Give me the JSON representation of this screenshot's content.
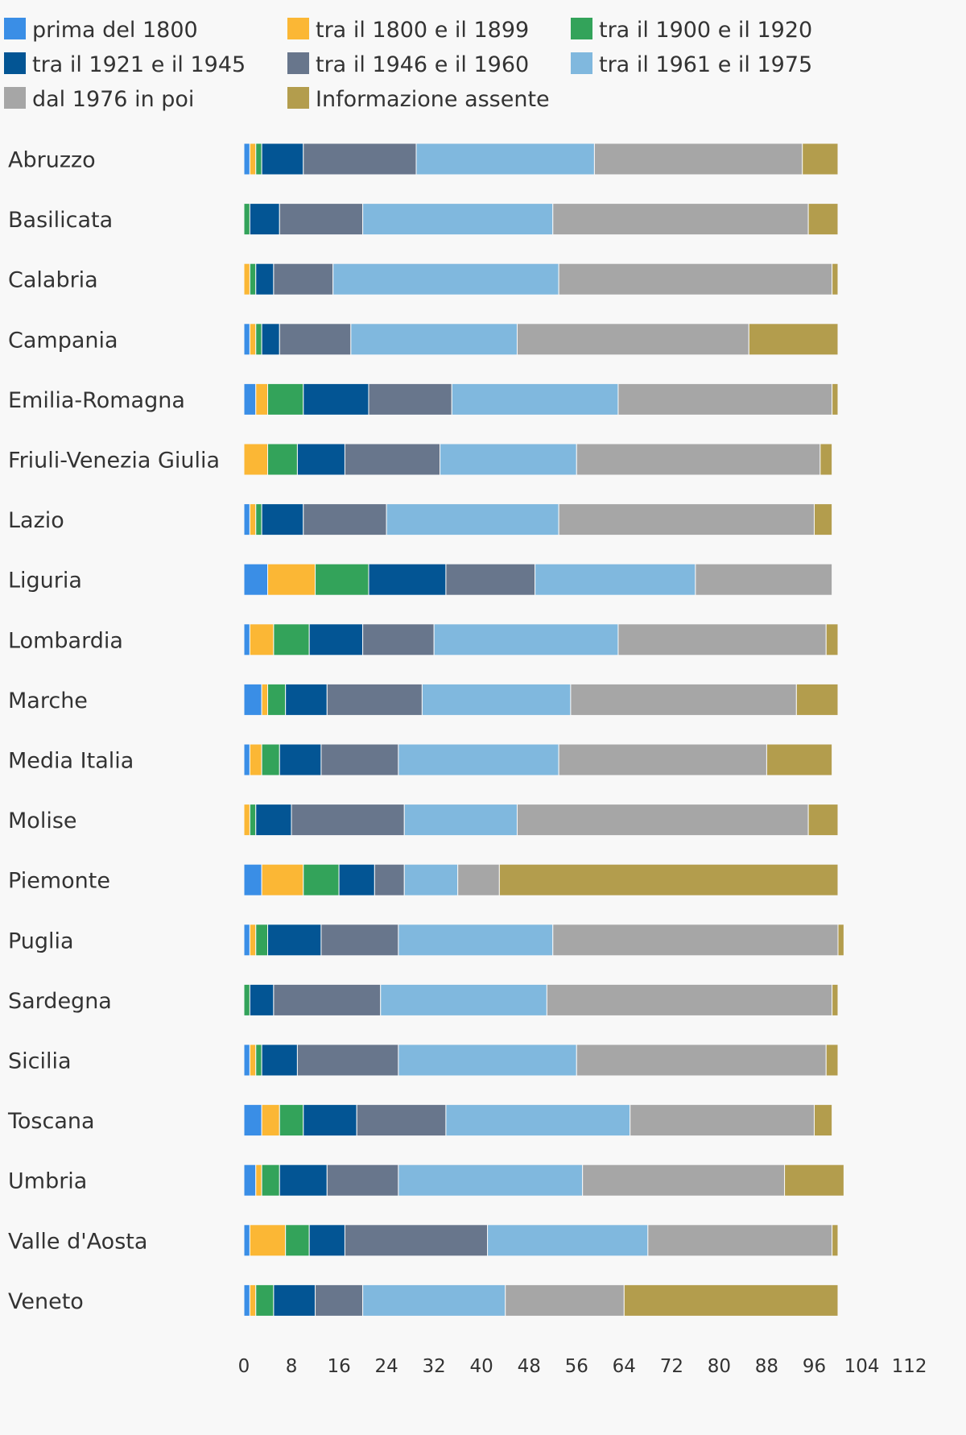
{
  "chart_data": {
    "type": "bar",
    "orientation": "horizontal",
    "stacked": true,
    "legend_position": "top",
    "grid": false,
    "xlim": [
      0,
      112
    ],
    "xticks": [
      0,
      8,
      16,
      24,
      32,
      40,
      48,
      56,
      64,
      72,
      80,
      88,
      96,
      104,
      112
    ],
    "categories": [
      "Abruzzo",
      "Basilicata",
      "Calabria",
      "Campania",
      "Emilia-Romagna",
      "Friuli-Venezia Giulia",
      "Lazio",
      "Liguria",
      "Lombardia",
      "Marche",
      "Media Italia",
      "Molise",
      "Piemonte",
      "Puglia",
      "Sardegna",
      "Sicilia",
      "Toscana",
      "Umbria",
      "Valle d'Aosta",
      "Veneto"
    ],
    "series": [
      {
        "name": "prima del 1800",
        "color": "#3a8ee6",
        "values": [
          1,
          0,
          0,
          1,
          2,
          0,
          1,
          4,
          1,
          3,
          1,
          0,
          3,
          1,
          0,
          1,
          3,
          2,
          1,
          1
        ]
      },
      {
        "name": "tra il 1800 e il 1899",
        "color": "#fbb735",
        "values": [
          1,
          0,
          1,
          1,
          2,
          4,
          1,
          8,
          4,
          1,
          2,
          1,
          7,
          1,
          0,
          1,
          3,
          1,
          6,
          1
        ]
      },
      {
        "name": "tra il 1900 e il 1920",
        "color": "#33a35a",
        "values": [
          1,
          1,
          1,
          1,
          6,
          5,
          1,
          9,
          6,
          3,
          3,
          1,
          6,
          2,
          1,
          1,
          4,
          3,
          4,
          3
        ]
      },
      {
        "name": "tra il 1921 e il 1945",
        "color": "#035594",
        "values": [
          7,
          5,
          3,
          3,
          11,
          8,
          7,
          13,
          9,
          7,
          7,
          6,
          6,
          9,
          4,
          6,
          9,
          8,
          6,
          7
        ]
      },
      {
        "name": "tra il 1946 e il 1960",
        "color": "#68768c",
        "values": [
          19,
          14,
          10,
          12,
          14,
          16,
          14,
          15,
          12,
          16,
          13,
          19,
          5,
          13,
          18,
          17,
          15,
          12,
          24,
          8
        ]
      },
      {
        "name": "tra il 1961 e il 1975",
        "color": "#80b8de",
        "values": [
          30,
          32,
          38,
          28,
          28,
          23,
          29,
          27,
          31,
          25,
          27,
          19,
          9,
          26,
          28,
          30,
          31,
          31,
          27,
          24
        ]
      },
      {
        "name": "dal 1976 in poi",
        "color": "#a6a6a6",
        "values": [
          35,
          43,
          46,
          39,
          36,
          41,
          43,
          23,
          35,
          38,
          35,
          49,
          7,
          48,
          48,
          42,
          31,
          34,
          31,
          20
        ]
      },
      {
        "name": "Informazione assente",
        "color": "#b39d4d",
        "values": [
          6,
          5,
          1,
          15,
          1,
          2,
          3,
          0,
          2,
          7,
          11,
          5,
          57,
          1,
          1,
          2,
          3,
          10,
          1,
          36
        ]
      }
    ]
  }
}
